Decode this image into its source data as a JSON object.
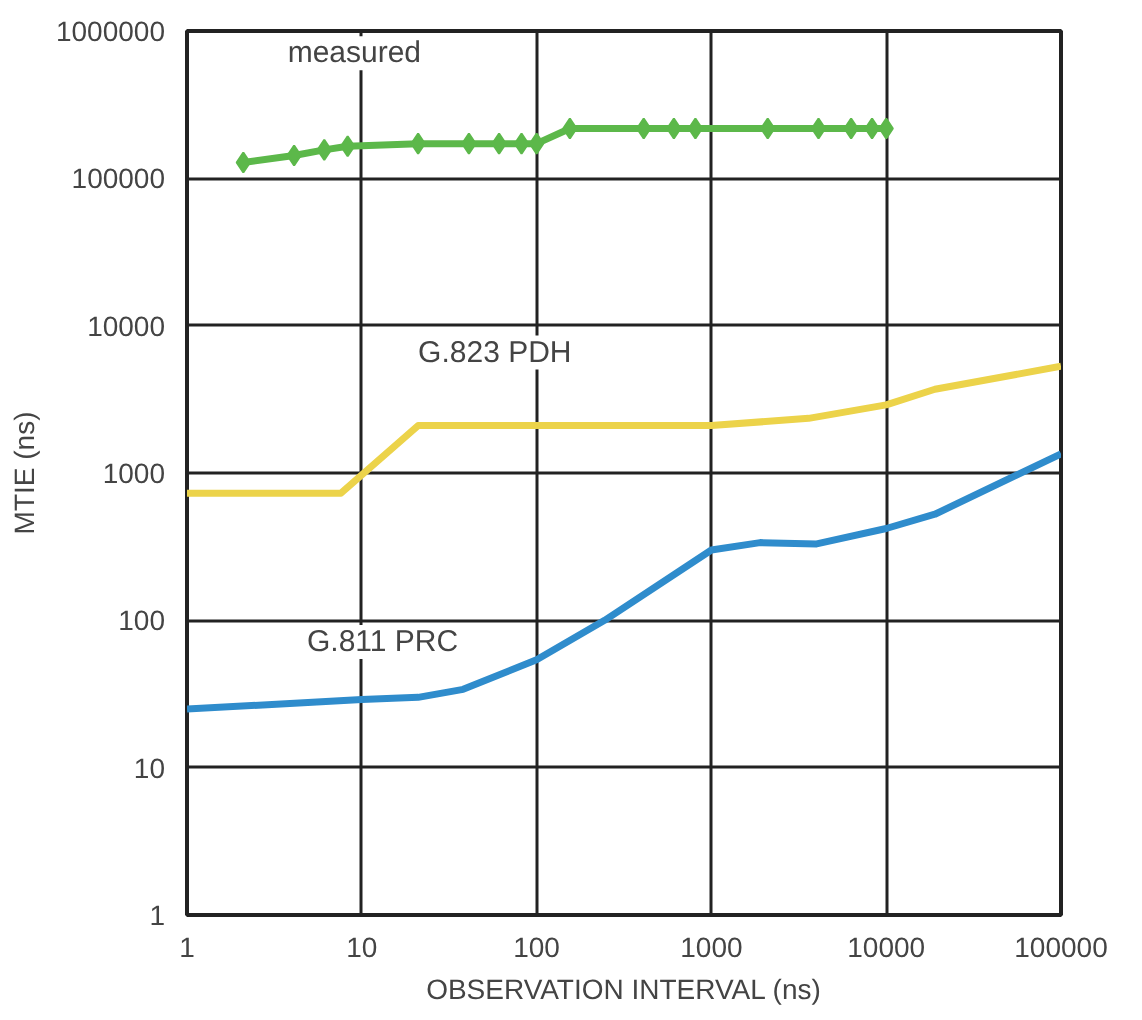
{
  "chart_data": {
    "type": "line",
    "xlabel": "OBSERVATION INTERVAL (ns)",
    "ylabel": "MTIE (ns)",
    "log": "xy",
    "grid": true,
    "line_style": "solid",
    "xlim": [
      1,
      100000
    ],
    "xticks": [
      1,
      10,
      100,
      1000,
      10000,
      100000
    ],
    "ylim": [
      1,
      1000000
    ],
    "yticks": [
      1,
      10,
      100,
      1000,
      10000,
      100000,
      1000000
    ],
    "series": [
      {
        "name": "measured",
        "color": "#5cb84a",
        "marker": "diamond",
        "x": [
          2.1,
          4.1,
          6.1,
          8.3,
          21,
          41,
          61,
          82,
          100,
          155,
          410,
          610,
          810,
          2100,
          4100,
          6300,
          8300,
          10000
        ],
        "values": [
          128000,
          143000,
          156000,
          165000,
          172000,
          172000,
          172000,
          172000,
          172000,
          218000,
          218000,
          218000,
          218000,
          218000,
          218000,
          218000,
          218000,
          218000
        ]
      },
      {
        "name": "G.823 PDH",
        "color": "#ecd34a",
        "marker": "none",
        "x": [
          1,
          7.6,
          21,
          1000,
          3600,
          10000,
          19000,
          100000
        ],
        "values": [
          730,
          730,
          2100,
          2100,
          2350,
          2900,
          3700,
          5300
        ]
      },
      {
        "name": "G.811 PRC",
        "color": "#2f8ccc",
        "marker": "none",
        "x": [
          1,
          10,
          21,
          38,
          100,
          245,
          1000,
          1900,
          4000,
          10000,
          19000,
          100000
        ],
        "values": [
          25,
          29,
          30,
          34,
          54,
          100,
          300,
          337,
          330,
          420,
          525,
          1350
        ]
      }
    ]
  }
}
